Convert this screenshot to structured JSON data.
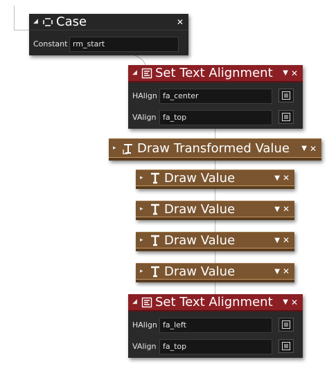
{
  "case_block": {
    "title": "Case",
    "param_label": "Constant",
    "param_value": "rm_start"
  },
  "set_align_1": {
    "title": "Set Text Alignment",
    "halign_label": "HAlign",
    "halign_value": "fa_center",
    "valign_label": "VAlign",
    "valign_value": "fa_top"
  },
  "draw_transformed": {
    "title": "Draw Transformed Value"
  },
  "draw_values": [
    {
      "title": "Draw Value"
    },
    {
      "title": "Draw Value"
    },
    {
      "title": "Draw Value"
    },
    {
      "title": "Draw Value"
    }
  ],
  "set_align_2": {
    "title": "Set Text Alignment",
    "halign_label": "HAlign",
    "halign_value": "fa_left",
    "valign_label": "VAlign",
    "valign_value": "fa_top"
  },
  "colors": {
    "case_bg": "#262626",
    "alignment_header": "#8b1f24",
    "draw_block": "#7a5530",
    "wire": "#bdbdbd"
  },
  "icons": [
    "collapse-triangle-icon",
    "expand-triangle-icon",
    "case-icon",
    "text-align-icon",
    "transform-text-icon",
    "text-T-icon",
    "dropdown-arrow-icon",
    "close-icon",
    "asset-picker-icon"
  ],
  "glyphs": {
    "collapse": "◢",
    "expand": "▸",
    "dropdown": "▼",
    "close": "✕"
  }
}
